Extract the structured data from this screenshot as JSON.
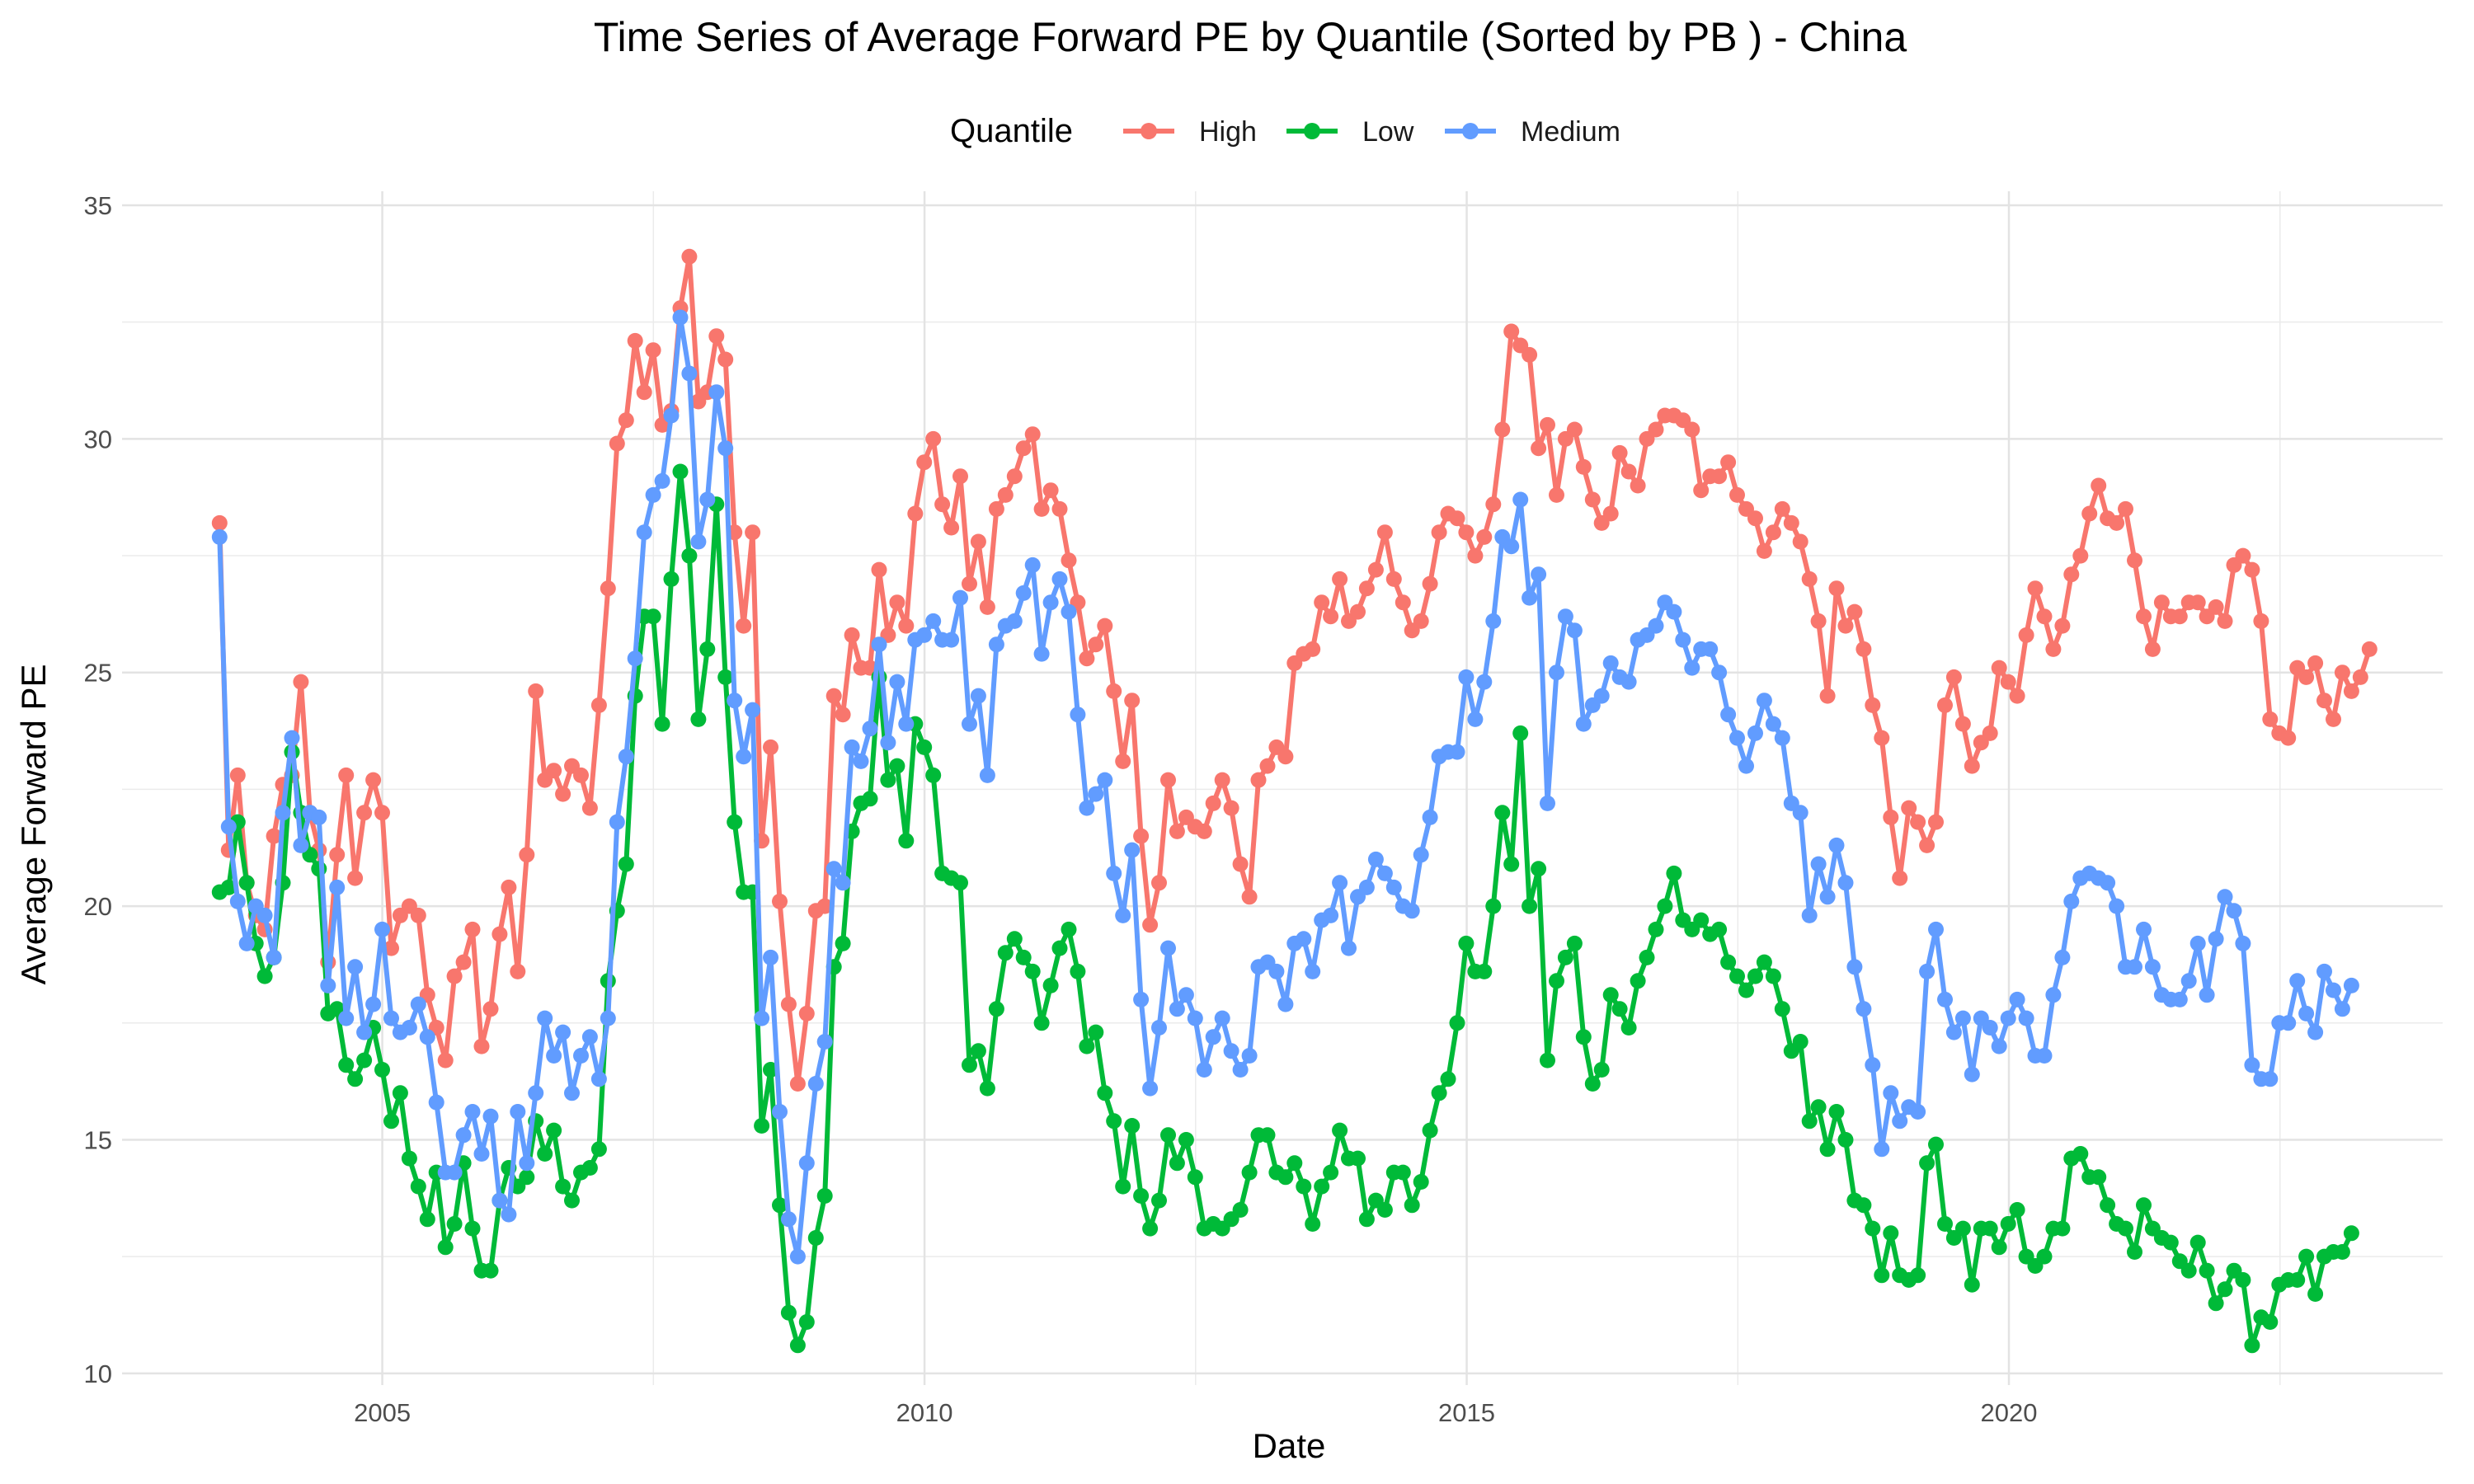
{
  "chart_data": {
    "type": "line",
    "title": "Time Series of Average Forward PE by Quantile (Sorted by PB ) - China",
    "xlabel": "Date",
    "ylabel": "Average Forward PE",
    "xlim": [
      2002.6,
      2024.0
    ],
    "ylim": [
      9.75,
      35.3
    ],
    "x_ticks": [
      2005,
      2010,
      2015,
      2020
    ],
    "y_ticks": [
      10,
      15,
      20,
      25,
      30,
      35
    ],
    "grid": true,
    "legend": {
      "title": "Quantile",
      "placement": "top"
    },
    "x_step": 0.0833,
    "series": [
      {
        "name": "High",
        "color": "#F8766D",
        "x_start": 2003.5,
        "values": [
          28.2,
          21.2,
          22.8,
          20.5,
          19.8,
          19.5,
          21.5,
          22.6,
          22.8,
          24.8,
          22,
          21.2,
          18.8,
          21.1,
          22.8,
          20.6,
          22,
          22.7,
          22,
          19.1,
          19.8,
          20,
          19.8,
          18.1,
          17.4,
          16.7,
          18.5,
          18.8,
          19.5,
          17,
          17.8,
          19.4,
          20.4,
          18.6,
          21.1,
          24.6,
          22.7,
          22.9,
          22.4,
          23,
          22.8,
          22.1,
          24.3,
          26.8,
          29.9,
          30.4,
          32.1,
          31,
          31.9,
          30.3,
          30.6,
          32.8,
          33.9,
          30.8,
          31,
          32.2,
          31.7,
          28,
          26,
          28,
          21.4,
          23.4,
          20.1,
          17.9,
          16.2,
          17.7,
          19.9,
          20,
          24.5,
          24.1,
          25.8,
          25.1,
          25.1,
          27.2,
          25.8,
          26.5,
          26,
          28.4,
          29.5,
          30,
          28.6,
          28.1,
          29.2,
          26.9,
          27.8,
          26.4,
          28.5,
          28.8,
          29.2,
          29.8,
          30.1,
          28.5,
          28.9,
          28.5,
          27.4,
          26.5,
          25.3,
          25.6,
          26,
          24.6,
          23.1,
          24.4,
          21.5,
          19.6,
          20.5,
          22.7,
          21.6,
          21.9,
          21.7,
          21.6,
          22.2,
          22.7,
          22.1,
          20.9,
          20.2,
          22.7,
          23,
          23.4,
          23.2,
          25.2,
          25.4,
          25.5,
          26.5,
          26.2,
          27,
          26.1,
          26.3,
          26.8,
          27.2,
          28,
          27,
          26.5,
          25.9,
          26.1,
          26.9,
          28,
          28.4,
          28.3,
          28,
          27.5,
          27.9,
          28.6,
          30.2,
          32.3,
          32,
          31.8,
          29.8,
          30.3,
          28.8,
          30,
          30.2,
          29.4,
          28.7,
          28.2,
          28.4,
          29.7,
          29.3,
          29,
          30,
          30.2,
          30.5,
          30.5,
          30.4,
          30.2,
          28.9,
          29.2,
          29.2,
          29.5,
          28.8,
          28.5,
          28.3,
          27.6,
          28,
          28.5,
          28.2,
          27.8,
          27,
          26.1,
          24.5,
          26.8,
          26,
          26.3,
          25.5,
          24.3,
          23.6,
          21.9,
          20.6,
          22.1,
          21.8,
          21.3,
          21.8,
          24.3,
          24.9,
          23.9,
          23,
          23.5,
          23.7,
          25.1,
          24.8,
          24.5,
          25.8,
          26.8,
          26.2,
          25.5,
          26,
          27.1,
          27.5,
          28.4,
          29,
          28.3,
          28.2,
          28.5,
          27.4,
          26.2,
          25.5,
          26.5,
          26.2,
          26.2,
          26.5,
          26.5,
          26.2,
          26.4,
          26.1,
          27.3,
          27.5,
          27.2,
          26.1,
          24,
          23.7,
          23.6,
          25.1,
          24.9,
          25.2,
          24.4,
          24,
          25,
          24.6,
          24.9,
          25.5
        ]
      },
      {
        "name": "Low",
        "color": "#00BA38",
        "x_start": 2003.5,
        "values": [
          20.3,
          20.4,
          21.8,
          20.5,
          19.2,
          18.5,
          18.9,
          20.5,
          23.3,
          22,
          21.1,
          20.8,
          17.7,
          17.8,
          16.6,
          16.3,
          16.7,
          17.4,
          16.5,
          15.4,
          16,
          14.6,
          14,
          13.3,
          14.3,
          12.7,
          13.2,
          14.5,
          13.1,
          12.2,
          12.2,
          13.7,
          14.4,
          14,
          14.2,
          15.4,
          14.7,
          15.2,
          14,
          13.7,
          14.3,
          14.4,
          14.8,
          18.4,
          19.9,
          20.9,
          24.5,
          26.2,
          26.2,
          23.9,
          27,
          29.3,
          27.5,
          24,
          25.5,
          28.6,
          24.9,
          21.8,
          20.3,
          20.3,
          15.3,
          16.5,
          13.6,
          11.3,
          10.6,
          11.1,
          12.9,
          13.8,
          18.7,
          19.2,
          21.6,
          22.2,
          22.3,
          24.9,
          22.7,
          23,
          21.4,
          23.9,
          23.4,
          22.8,
          20.7,
          20.6,
          20.5,
          16.6,
          16.9,
          16.1,
          17.8,
          19,
          19.3,
          18.9,
          18.6,
          17.5,
          18.3,
          19.1,
          19.5,
          18.6,
          17,
          17.3,
          16,
          15.4,
          14,
          15.3,
          13.8,
          13.1,
          13.7,
          15.1,
          14.5,
          15,
          14.2,
          13.1,
          13.2,
          13.1,
          13.3,
          13.5,
          14.3,
          15.1,
          15.1,
          14.3,
          14.2,
          14.5,
          14,
          13.2,
          14,
          14.3,
          15.2,
          14.6,
          14.6,
          13.3,
          13.7,
          13.5,
          14.3,
          14.3,
          13.6,
          14.1,
          15.2,
          16,
          16.3,
          17.5,
          19.2,
          18.6,
          18.6,
          20,
          22,
          20.9,
          23.7,
          20,
          20.8,
          16.7,
          18.4,
          18.9,
          19.2,
          17.2,
          16.2,
          16.5,
          18.1,
          17.8,
          17.4,
          18.4,
          18.9,
          19.5,
          20,
          20.7,
          19.7,
          19.5,
          19.7,
          19.4,
          19.5,
          18.8,
          18.5,
          18.2,
          18.5,
          18.8,
          18.5,
          17.8,
          16.9,
          17.1,
          15.4,
          15.7,
          14.8,
          15.6,
          15,
          13.7,
          13.6,
          13.1,
          12.1,
          13,
          12.1,
          12,
          12.1,
          14.5,
          14.9,
          13.2,
          12.9,
          13.1,
          11.9,
          13.1,
          13.1,
          12.7,
          13.2,
          13.5,
          12.5,
          12.3,
          12.5,
          13.1,
          13.1,
          14.6,
          14.7,
          14.2,
          14.2,
          13.6,
          13.2,
          13.1,
          12.6,
          13.6,
          13.1,
          12.9,
          12.8,
          12.4,
          12.2,
          12.8,
          12.2,
          11.5,
          11.8,
          12.2,
          12,
          10.6,
          11.2,
          11.1,
          11.9,
          12,
          12,
          12.5,
          11.7,
          12.5,
          12.6,
          12.6,
          13
        ]
      },
      {
        "name": "Medium",
        "color": "#619CFF",
        "x_start": 2003.5,
        "values": [
          27.9,
          21.7,
          20.1,
          19.2,
          20,
          19.8,
          18.9,
          22,
          23.6,
          21.3,
          22,
          21.9,
          18.3,
          20.4,
          17.6,
          18.7,
          17.3,
          17.9,
          19.5,
          17.6,
          17.3,
          17.4,
          17.9,
          17.2,
          15.8,
          14.3,
          14.3,
          15.1,
          15.6,
          14.7,
          15.5,
          13.7,
          13.4,
          15.6,
          14.5,
          16,
          17.6,
          16.8,
          17.3,
          16,
          16.8,
          17.2,
          16.3,
          17.6,
          21.8,
          23.2,
          25.3,
          28,
          28.8,
          29.1,
          30.5,
          32.6,
          31.4,
          27.8,
          28.7,
          31,
          29.8,
          24.4,
          23.2,
          24.2,
          17.6,
          18.9,
          15.6,
          13.3,
          12.5,
          14.5,
          16.2,
          17.1,
          20.8,
          20.5,
          23.4,
          23.1,
          23.8,
          25.6,
          23.5,
          24.8,
          23.9,
          25.7,
          25.8,
          26.1,
          25.7,
          25.7,
          26.6,
          23.9,
          24.5,
          22.8,
          25.6,
          26,
          26.1,
          26.7,
          27.3,
          25.4,
          26.5,
          27,
          26.3,
          24.1,
          22.1,
          22.4,
          22.7,
          20.7,
          19.8,
          21.2,
          18,
          16.1,
          17.4,
          19.1,
          17.8,
          18.1,
          17.6,
          16.5,
          17.2,
          17.6,
          16.9,
          16.5,
          16.8,
          18.7,
          18.8,
          18.6,
          17.9,
          19.2,
          19.3,
          18.6,
          19.7,
          19.8,
          20.5,
          19.1,
          20.2,
          20.4,
          21,
          20.7,
          20.4,
          20,
          19.9,
          21.1,
          21.9,
          23.2,
          23.3,
          23.3,
          24.9,
          24,
          24.8,
          26.1,
          27.9,
          27.7,
          28.7,
          26.6,
          27.1,
          22.2,
          25,
          26.2,
          25.9,
          23.9,
          24.3,
          24.5,
          25.2,
          24.9,
          24.8,
          25.7,
          25.8,
          26,
          26.5,
          26.3,
          25.7,
          25.1,
          25.5,
          25.5,
          25,
          24.1,
          23.6,
          23,
          23.7,
          24.4,
          23.9,
          23.6,
          22.2,
          22,
          19.8,
          20.9,
          20.2,
          21.3,
          20.5,
          18.7,
          17.8,
          16.6,
          14.8,
          16,
          15.4,
          15.7,
          15.6,
          18.6,
          19.5,
          18,
          17.3,
          17.6,
          16.4,
          17.6,
          17.4,
          17,
          17.6,
          18,
          17.6,
          16.8,
          16.8,
          18.1,
          18.9,
          20.1,
          20.6,
          20.7,
          20.6,
          20.5,
          20,
          18.7,
          18.7,
          19.5,
          18.7,
          18.1,
          18,
          18,
          18.4,
          19.2,
          18.1,
          19.3,
          20.2,
          19.9,
          19.2,
          16.6,
          16.3,
          16.3,
          17.5,
          17.5,
          18.4,
          17.7,
          17.3,
          18.6,
          18.2,
          17.8,
          18.3
        ]
      }
    ]
  }
}
